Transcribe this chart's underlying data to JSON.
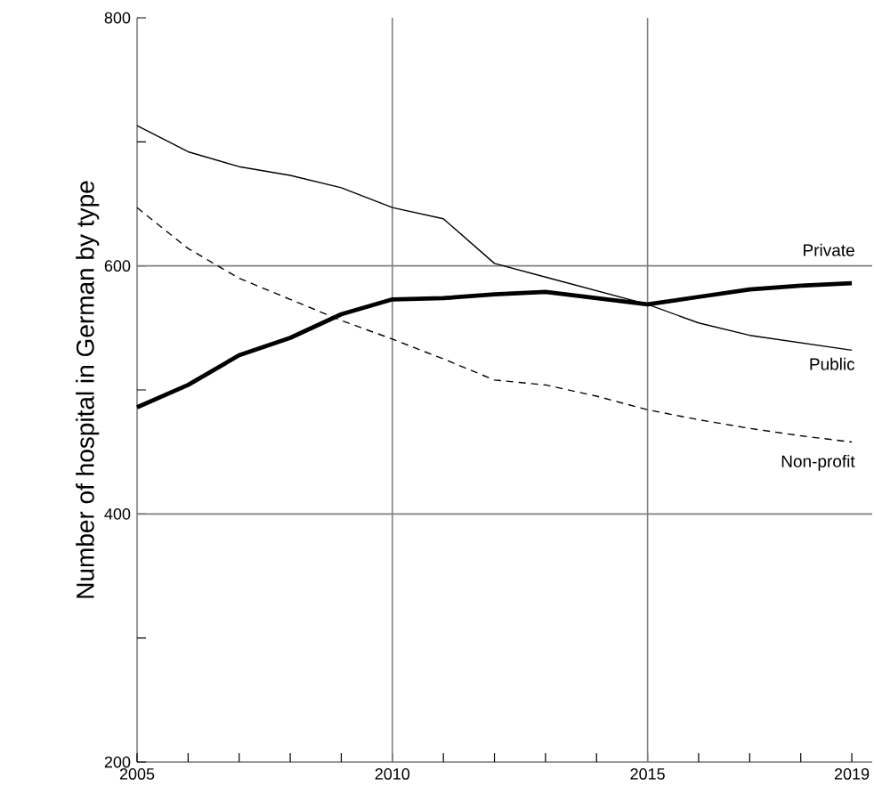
{
  "chart_data": {
    "type": "line",
    "ylabel": "Number of hospital in German by type",
    "x": [
      2005,
      2006,
      2007,
      2008,
      2009,
      2010,
      2011,
      2012,
      2013,
      2014,
      2015,
      2016,
      2017,
      2018,
      2019
    ],
    "series": [
      {
        "name": "Private",
        "color": "#000000",
        "line_style": "solid",
        "values": [
          486,
          504,
          528,
          542,
          561,
          573,
          574,
          577,
          579,
          574,
          569,
          575,
          581,
          584,
          586
        ]
      },
      {
        "name": "Public",
        "color": "#000000",
        "line_style": "solid",
        "values": [
          713,
          692,
          680,
          673,
          663,
          647,
          638,
          602,
          591,
          580,
          569,
          554,
          544,
          538,
          532
        ]
      },
      {
        "name": "Non-profit",
        "color": "#000000",
        "line_style": "dashed",
        "values": [
          647,
          614,
          590,
          573,
          556,
          541,
          525,
          508,
          504,
          495,
          484,
          476,
          469,
          463,
          458
        ]
      }
    ],
    "xlim": [
      2005,
      2019.4
    ],
    "ylim": [
      200,
      800
    ],
    "xticks": [
      2005,
      {
        "value": 2006,
        "label": null
      },
      {
        "value": 2007,
        "label": null
      },
      {
        "value": 2008,
        "label": null
      },
      {
        "value": 2009,
        "label": null
      },
      2010,
      {
        "value": 2011,
        "label": null
      },
      {
        "value": 2012,
        "label": null
      },
      {
        "value": 2013,
        "label": null
      },
      {
        "value": 2014,
        "label": null
      },
      2015,
      {
        "value": 2016,
        "label": null
      },
      {
        "value": 2017,
        "label": null
      },
      {
        "value": 2018,
        "label": null
      },
      2019
    ],
    "yticks": [
      200,
      {
        "value": 300,
        "label": null
      },
      400,
      {
        "value": 500,
        "label": null
      },
      600,
      {
        "value": 700,
        "label": null
      },
      800
    ],
    "ref_lines": [
      {
        "axis": "x",
        "value": 2010
      },
      {
        "axis": "x",
        "value": 2015
      },
      {
        "axis": "y",
        "value": 400
      },
      {
        "axis": "y",
        "value": 600
      }
    ],
    "marker": "none",
    "legend": false
  }
}
